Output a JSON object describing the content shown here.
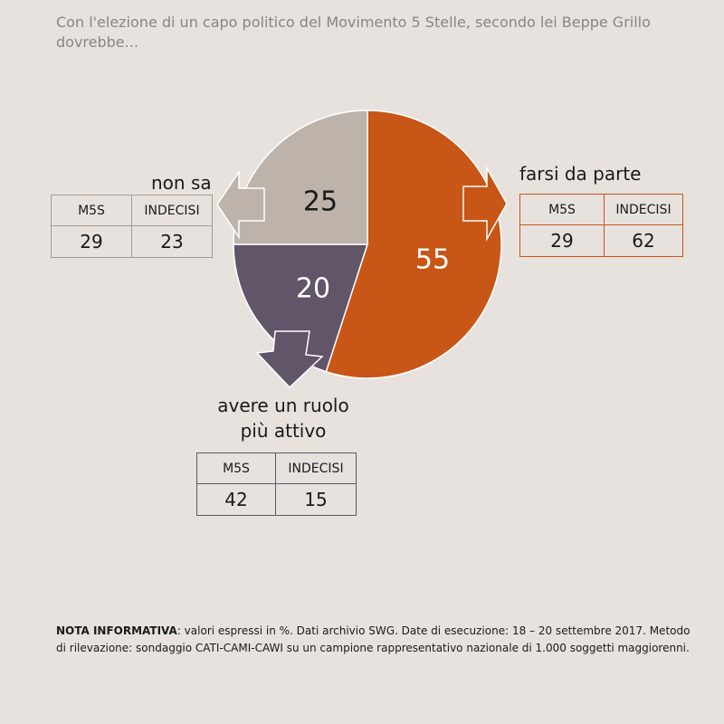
{
  "title": "Con l'elezione di un capo politico del Movimento 5 Stelle, secondo lei Beppe Grillo dovrebbe...",
  "colors": {
    "background": "#e7e2de",
    "orange": "#c85617",
    "taupe": "#bdb3aa",
    "purple": "#615569"
  },
  "chart_data": {
    "type": "pie",
    "title": "Con l'elezione di un capo politico del Movimento 5 Stelle, secondo lei Beppe Grillo dovrebbe...",
    "slices": [
      {
        "label": "farsi da parte",
        "value": 55,
        "color": "#c85617"
      },
      {
        "label": "avere un ruolo più attivo",
        "value": 20,
        "color": "#615569"
      },
      {
        "label": "non sa",
        "value": 25,
        "color": "#bdb3aa"
      }
    ],
    "breakdowns": [
      {
        "category": "farsi da parte",
        "columns": [
          "M5S",
          "INDECISI"
        ],
        "values": [
          29,
          62
        ]
      },
      {
        "category": "avere un ruolo più attivo",
        "columns": [
          "M5S",
          "INDECISI"
        ],
        "values": [
          42,
          15
        ]
      },
      {
        "category": "non sa",
        "columns": [
          "M5S",
          "INDECISI"
        ],
        "values": [
          29,
          23
        ]
      }
    ]
  },
  "labels": {
    "farsi": "farsi da parte",
    "ruolo_line1": "avere un ruolo",
    "ruolo_line2": "più attivo",
    "non_sa": "non sa"
  },
  "tables": {
    "farsi": {
      "h1": "M5S",
      "h2": "INDECISI",
      "v1": "29",
      "v2": "62"
    },
    "ruolo": {
      "h1": "M5S",
      "h2": "INDECISI",
      "v1": "42",
      "v2": "15"
    },
    "non_sa": {
      "h1": "M5S",
      "h2": "INDECISI",
      "v1": "29",
      "v2": "23"
    }
  },
  "note": {
    "bold": "NOTA INFORMATIVA",
    "text": ": valori espressi in %. Dati archivio SWG. Date di esecuzione: 18 – 20 settembre 2017. Metodo di rilevazione: sondaggio CATI-CAMI-CAWI su un campione rappresentativo nazionale di 1.000 soggetti maggiorenni."
  }
}
